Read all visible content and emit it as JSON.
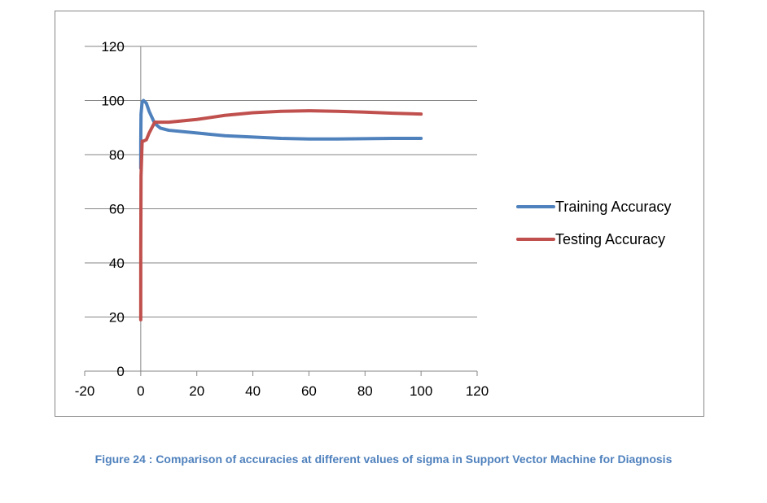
{
  "chart_data": {
    "type": "line",
    "title": "",
    "xlabel": "",
    "ylabel": "",
    "xlim": [
      -20,
      120
    ],
    "ylim": [
      0,
      120
    ],
    "x_ticks": [
      -20,
      0,
      20,
      40,
      60,
      80,
      100,
      120
    ],
    "y_ticks": [
      0,
      20,
      40,
      60,
      80,
      100,
      120
    ],
    "grid": "horizontal",
    "legend_position": "right",
    "series": [
      {
        "name": "Training Accuracy",
        "color": "#4f81bd",
        "x": [
          0,
          0.01,
          0.1,
          0.5,
          1,
          2,
          3,
          5,
          7,
          10,
          20,
          30,
          40,
          50,
          60,
          70,
          80,
          90,
          100
        ],
        "y": [
          75,
          85,
          95,
          99.5,
          100,
          99,
          96,
          91.5,
          89.8,
          89,
          88,
          87,
          86.5,
          86,
          85.8,
          85.8,
          85.9,
          86,
          86
        ]
      },
      {
        "name": "Testing Accuracy",
        "color": "#c0504d",
        "x": [
          0,
          0.01,
          0.1,
          0.5,
          1,
          2,
          3,
          5,
          7,
          10,
          20,
          30,
          40,
          50,
          60,
          70,
          80,
          90,
          100
        ],
        "y": [
          19,
          45,
          72,
          85,
          85,
          85.5,
          88,
          92,
          92,
          92,
          93,
          94.5,
          95.5,
          96,
          96.2,
          96,
          95.7,
          95.3,
          95
        ]
      }
    ]
  },
  "caption": "Figure 24 : Comparison of accuracies at different values of sigma in Support Vector Machine for Diagnosis"
}
